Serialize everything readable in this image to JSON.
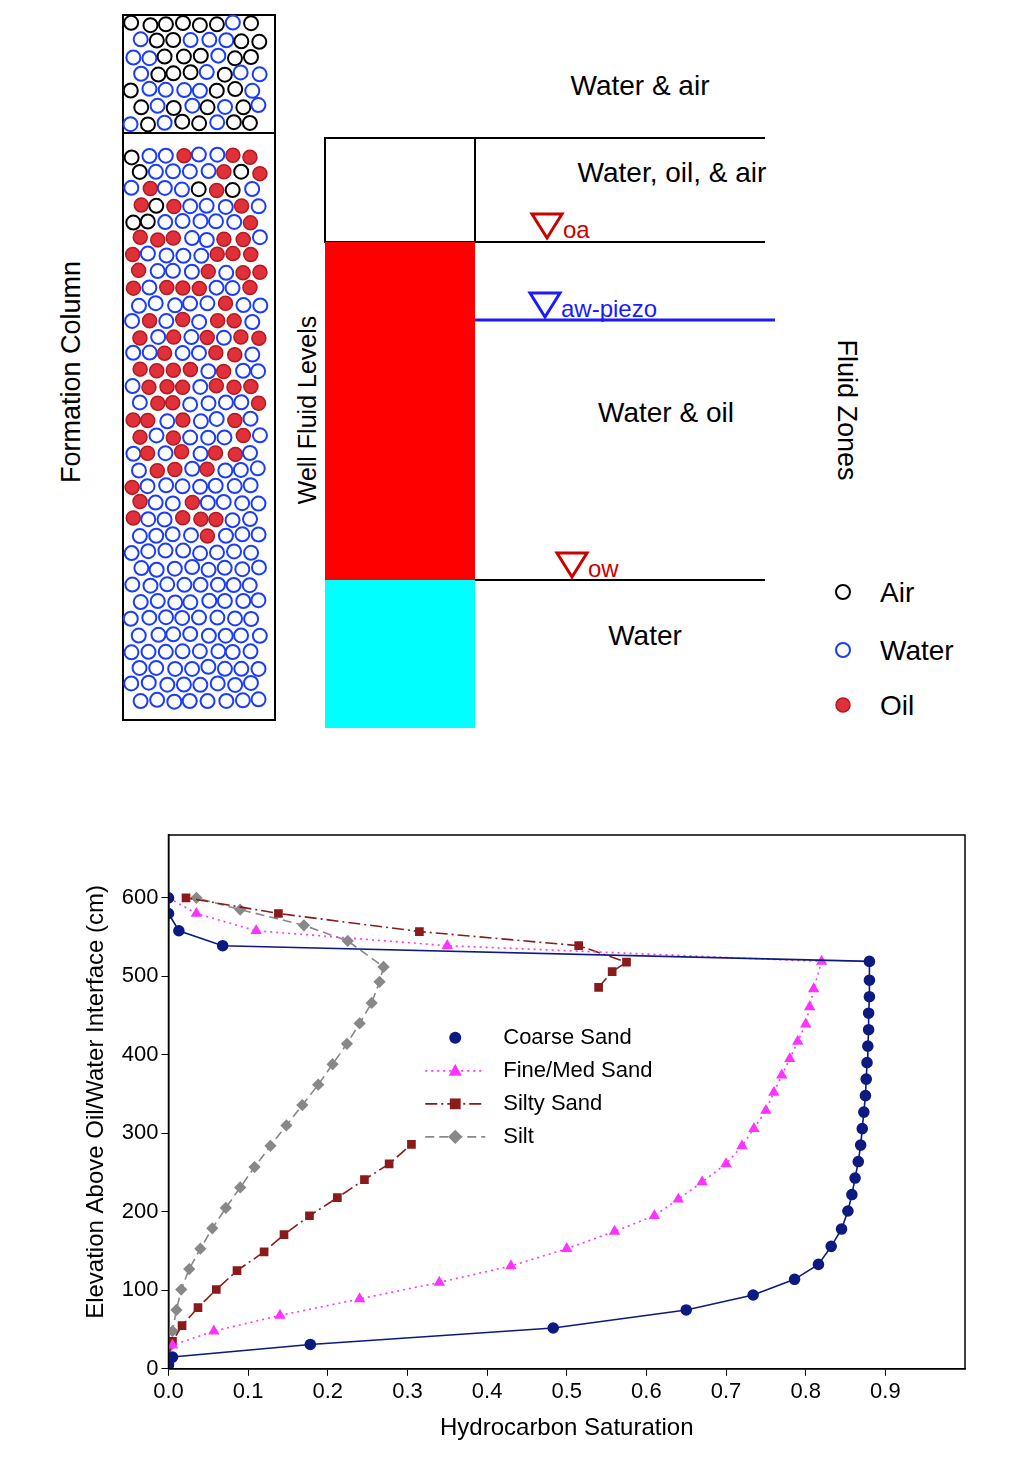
{
  "diagram": {
    "formation_column": {
      "title": "Formation Column"
    },
    "well": {
      "title": "Well Fluid Levels",
      "levels": [
        {
          "label": "oa",
          "color": "#cc0000"
        },
        {
          "label": "aw-piezo",
          "color": "#1a1aff"
        },
        {
          "label": "ow",
          "color": "#cc0000"
        }
      ]
    },
    "fluid_zones": {
      "title": "Fluid Zones",
      "zones": [
        "Water & air",
        "Water, oil, & air",
        "Water & oil",
        "Water"
      ]
    },
    "legend": [
      {
        "label": "Air",
        "color": "#000000"
      },
      {
        "label": "Water",
        "color": "#1a3cff"
      },
      {
        "label": "Oil",
        "color": "#e0303a"
      }
    ]
  },
  "chart_data": {
    "type": "scatter",
    "x_label": "Hydrocarbon Saturation",
    "y_label": "Elevation Above Oil/Water Interface (cm)",
    "xlim": [
      0,
      1.0
    ],
    "xticks": [
      {
        "value": 0,
        "label": "0.0"
      },
      0.1,
      0.2,
      0.3,
      0.4,
      0.5,
      0.6,
      0.7,
      0.8,
      0.9
    ],
    "ylim": [
      0,
      680
    ],
    "yticks": [
      0,
      100,
      200,
      300,
      400,
      500,
      600
    ],
    "grid": false,
    "legend": "center",
    "series": [
      {
        "name": "Coarse Sand",
        "color": "#0d1a80",
        "marker": "circle",
        "line_style": "solid",
        "x": [
          0,
          0.005,
          0.178,
          0.483,
          0.65,
          0.734,
          0.786,
          0.816,
          0.832,
          0.845,
          0.853,
          0.858,
          0.862,
          0.866,
          0.869,
          0.871,
          0.873,
          0.875,
          0.876,
          0.877,
          0.878,
          0.879,
          0.879,
          0.88,
          0.88,
          0.88,
          0.068,
          0.013,
          0,
          0
        ],
        "values": [
          5,
          15,
          31,
          52,
          75,
          94,
          114,
          133,
          156,
          178,
          201,
          222,
          243,
          264,
          285,
          306,
          327,
          348,
          369,
          390,
          411,
          432,
          453,
          474,
          495,
          519,
          539,
          558,
          580,
          600
        ]
      },
      {
        "name": "Fine/Med Sand",
        "color": "#ff33ff",
        "marker": "triangle",
        "line_style": "dotted",
        "x": [
          0,
          0.005,
          0.057,
          0.14,
          0.24,
          0.34,
          0.43,
          0.5,
          0.56,
          0.61,
          0.64,
          0.67,
          0.7,
          0.72,
          0.735,
          0.75,
          0.76,
          0.77,
          0.78,
          0.79,
          0.8,
          0.805,
          0.81,
          0.82,
          0.35,
          0.11,
          0.035,
          0
        ],
        "values": [
          12,
          30,
          48,
          68,
          89,
          110,
          131,
          153,
          175,
          195,
          216,
          238,
          261,
          284,
          306,
          329,
          352,
          374,
          395,
          417,
          439,
          461,
          484,
          519,
          539,
          558,
          580,
          600
        ]
      },
      {
        "name": "Silty Sand",
        "color": "#8b1a1a",
        "marker": "square",
        "line_style": "dashdot",
        "x": [
          0,
          0.005,
          0.017,
          0.037,
          0.06,
          0.086,
          0.12,
          0.145,
          0.177,
          0.212,
          0.246,
          0.277,
          0.305,
          null,
          0.54,
          0.557,
          0.575,
          0.515,
          0.315,
          0.138,
          0.022
        ],
        "values": [
          16,
          35,
          55,
          78,
          101,
          125,
          149,
          171,
          195,
          218,
          241,
          261,
          286,
          null,
          486,
          506,
          518,
          539,
          557,
          580,
          600
        ]
      },
      {
        "name": "Silt",
        "color": "#888888",
        "marker": "diamond",
        "line_style": "dashed",
        "x": [
          0,
          0.002,
          0.005,
          0.01,
          0.016,
          0.026,
          0.04,
          0.055,
          0.072,
          0.09,
          0.108,
          0.128,
          0.148,
          0.168,
          0.188,
          0.206,
          0.224,
          0.24,
          0.255,
          0.265,
          0.27,
          0.225,
          0.17,
          0.09,
          0.035
        ],
        "values": [
          9,
          29,
          48,
          75,
          101,
          127,
          153,
          179,
          205,
          231,
          257,
          284,
          310,
          336,
          362,
          388,
          414,
          440,
          466,
          493,
          512,
          545,
          565,
          585,
          600
        ]
      }
    ]
  }
}
